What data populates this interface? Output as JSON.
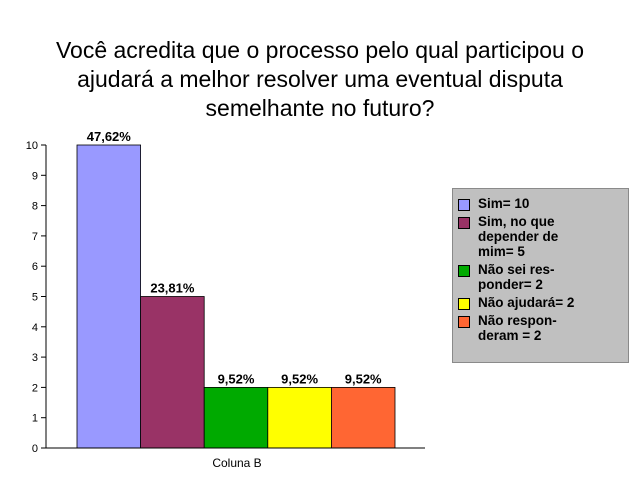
{
  "title_lines": [
    "Você acredita que o processo pelo qual participou o",
    "ajudará a melhor resolver uma eventual disputa",
    "semelhante no futuro?"
  ],
  "chart_data": {
    "type": "bar",
    "title": "Você acredita que o processo pelo qual participou o ajudará a melhor resolver uma eventual disputa semelhante no futuro?",
    "categories": [
      "Coluna B"
    ],
    "series": [
      {
        "name": "Sim= 10",
        "values": [
          10
        ],
        "data_label": "47,62%",
        "color": "#9999ff"
      },
      {
        "name": "Sim, no que depender de mim= 5",
        "values": [
          5
        ],
        "data_label": "23,81%",
        "color": "#993366"
      },
      {
        "name": "Não sei responder= 2",
        "values": [
          2
        ],
        "data_label": "9,52%",
        "color": "#00aa00"
      },
      {
        "name": "Não ajudará= 2",
        "values": [
          2
        ],
        "data_label": "9,52%",
        "color": "#ffff00"
      },
      {
        "name": "Não responderam = 2",
        "values": [
          2
        ],
        "data_label": "9,52%",
        "color": "#ff6633"
      }
    ],
    "xlabel": "",
    "ylabel": "",
    "ylim": [
      0,
      10
    ],
    "yticks": [
      "0",
      "1",
      "2",
      "3",
      "4",
      "5",
      "6",
      "7",
      "8",
      "9",
      "10"
    ],
    "grid": false,
    "legend_position": "right"
  },
  "legend_items": [
    {
      "label": "Sim= 10",
      "color": "#9999ff"
    },
    {
      "label": "Sim, no que\ndepender de\nmim= 5",
      "color": "#993366"
    },
    {
      "label": "Não sei res-\nponder= 2",
      "color": "#00aa00"
    },
    {
      "label": "Não ajudará= 2",
      "color": "#ffff00"
    },
    {
      "label": "Não respon-\nderam = 2",
      "color": "#ff6633"
    }
  ]
}
